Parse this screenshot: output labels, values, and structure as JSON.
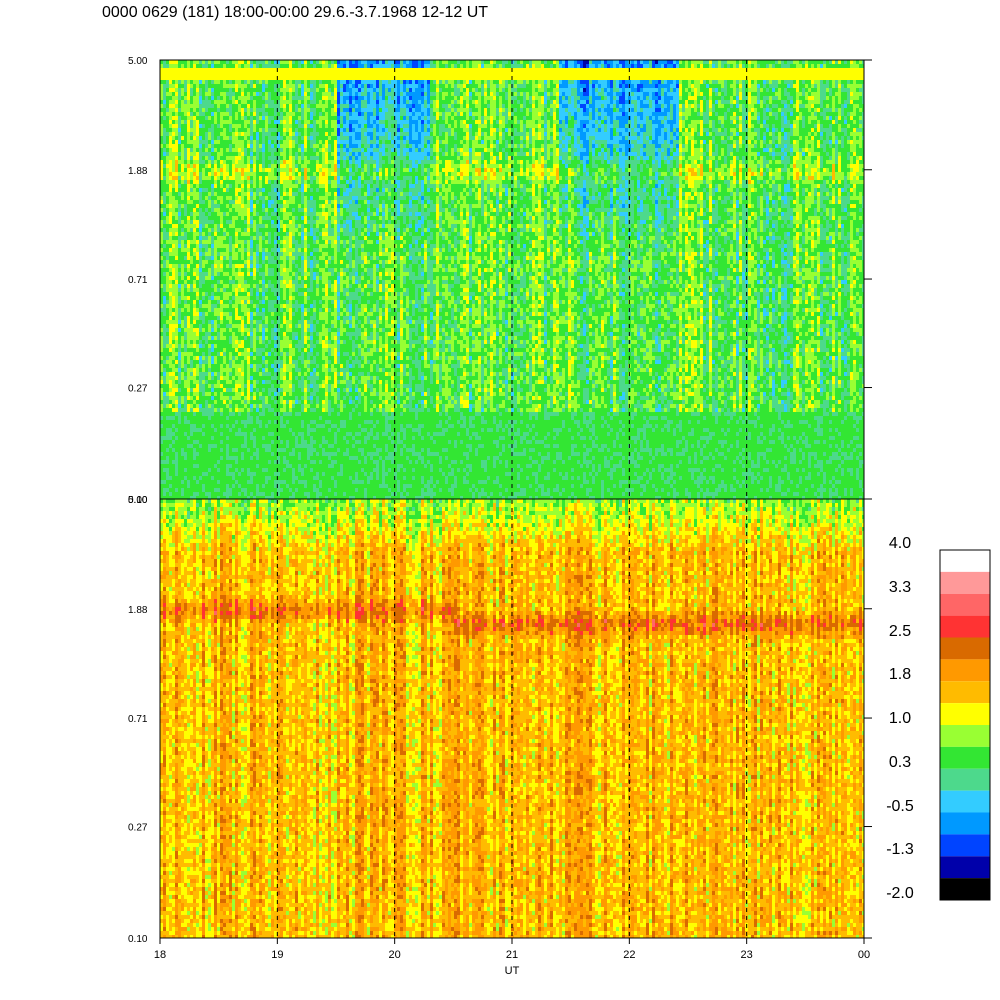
{
  "title": "0000 0629 (181) 18:00-00:00 29.6.-3.7.1968  12-12 UT",
  "chart_data": {
    "type": "heatmap",
    "title": "0000 0629 (181) 18:00-00:00 29.6.-3.7.1968  12-12 UT",
    "xlabel": "UT",
    "ylabel": "",
    "x_ticks": [
      "18",
      "19",
      "20",
      "21",
      "22",
      "23",
      "00"
    ],
    "x_range": [
      18,
      24
    ],
    "y_scale": "log",
    "y_ticks": [
      "0.10",
      "0.27",
      "0.71",
      "1.88",
      "5.00"
    ],
    "y_range": [
      0.1,
      5.0
    ],
    "grid": "dashed vertical lines at each hour",
    "panels": [
      {
        "name": "upper",
        "description_levels": "mostly green/yellow (0.3-1.0), blue depression (-0.5 to -1.3) near 19.6-20.2 UT and 21.4-22.3 UT above 1.88, yellow band near 1.88 early",
        "band_value_near_1_88": 1.0,
        "background_value": 0.5
      },
      {
        "name": "lower",
        "description_levels": "mostly orange/yellow (1.0-2.2), darker orange band near 1.88 decreasing slightly after 20.5 UT",
        "band_value_near_1_88": 2.3,
        "background_value": 1.6
      }
    ],
    "colorbar": {
      "labels": [
        "4.0",
        "3.3",
        "2.5",
        "1.8",
        "1.0",
        "0.3",
        "-0.5",
        "-1.3",
        "-2.0"
      ],
      "colors": [
        "#ffffff",
        "#ff9999",
        "#ff6666",
        "#ff3333",
        "#d96a00",
        "#ff9900",
        "#ffbb00",
        "#ffff00",
        "#99ff33",
        "#33e633",
        "#4dd98c",
        "#33ccff",
        "#0099ff",
        "#0044ff",
        "#0000aa",
        "#000000"
      ],
      "range": [
        -2.0,
        4.0
      ]
    }
  }
}
